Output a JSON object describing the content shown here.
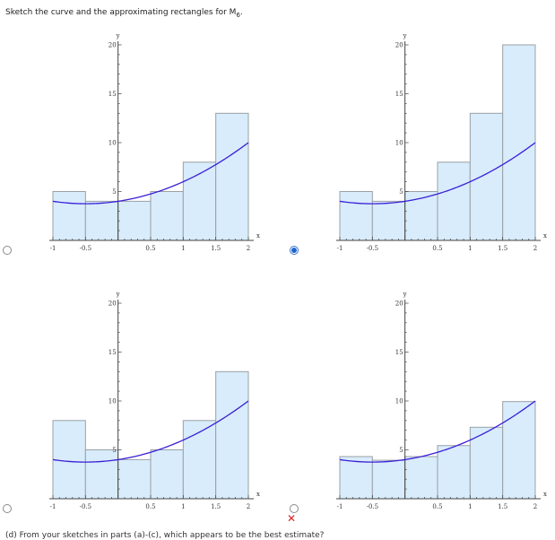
{
  "question": {
    "prompt_text": "Sketch the curve and the approximating rectangles for M",
    "prompt_sub": "6",
    "prompt_end": ".",
    "cutoff_text": "(d) From your sketches in parts (a)-(c), which appears to be the best estimate?"
  },
  "feedback": {
    "wrong_mark": "✕"
  },
  "colors": {
    "curve": "#3a1fd6",
    "rect_fill": "#d8ecfb",
    "rect_stroke": "#9aa0a6",
    "axis": "#444444"
  },
  "options": [
    {
      "id": "a",
      "selected": false,
      "wrong": false
    },
    {
      "id": "b",
      "selected": true,
      "wrong": false
    },
    {
      "id": "c",
      "selected": false,
      "wrong": false
    },
    {
      "id": "d",
      "selected": false,
      "wrong": true
    }
  ],
  "chart_data": [
    {
      "type": "area",
      "curve": "y = x^2 + x + 4",
      "xlabel": "x",
      "ylabel": "y",
      "xlim": [
        -1,
        2
      ],
      "ylim": [
        0,
        20
      ],
      "x_ticks": [
        "-1",
        "-0.5",
        "0.5",
        "1",
        "1.5",
        "2"
      ],
      "y_ticks": [
        "5",
        "10",
        "15",
        "20"
      ],
      "rect_edges": [
        -1,
        -0.5,
        0,
        0.5,
        1,
        1.5,
        2
      ],
      "rect_heights": [
        5,
        4,
        4,
        5,
        8,
        13
      ]
    },
    {
      "type": "area",
      "curve": "y = x^2 + x + 4",
      "xlabel": "x",
      "ylabel": "y",
      "xlim": [
        -1,
        2
      ],
      "ylim": [
        0,
        20
      ],
      "x_ticks": [
        "-1",
        "-0.5",
        "0.5",
        "1",
        "1.5",
        "2"
      ],
      "y_ticks": [
        "5",
        "10",
        "15",
        "20"
      ],
      "rect_edges": [
        -1,
        -0.5,
        0,
        0.5,
        1,
        1.5,
        2
      ],
      "rect_heights": [
        5,
        4,
        5,
        8,
        13,
        20
      ]
    },
    {
      "type": "area",
      "curve": "y = x^2 + x + 4",
      "xlabel": "x",
      "ylabel": "y",
      "xlim": [
        -1,
        2
      ],
      "ylim": [
        0,
        20
      ],
      "x_ticks": [
        "-1",
        "-0.5",
        "0.5",
        "1",
        "1.5",
        "2"
      ],
      "y_ticks": [
        "5",
        "10",
        "15",
        "20"
      ],
      "rect_edges": [
        -1,
        -0.5,
        0,
        0.5,
        1,
        1.5,
        2
      ],
      "rect_heights": [
        8,
        5,
        4,
        5,
        8,
        13
      ]
    },
    {
      "type": "area",
      "curve": "y = x^2 + x + 4",
      "xlabel": "x",
      "ylabel": "y",
      "xlim": [
        -1,
        2
      ],
      "ylim": [
        0,
        20
      ],
      "x_ticks": [
        "-1",
        "-0.5",
        "0.5",
        "1",
        "1.5",
        "2"
      ],
      "y_ticks": [
        "5",
        "10",
        "15",
        "20"
      ],
      "rect_edges": [
        -1,
        -0.5,
        0,
        0.5,
        1,
        1.5,
        2
      ],
      "rect_heights": [
        4.3125,
        3.9375,
        4.3125,
        5.4375,
        7.3125,
        9.9375
      ]
    }
  ]
}
